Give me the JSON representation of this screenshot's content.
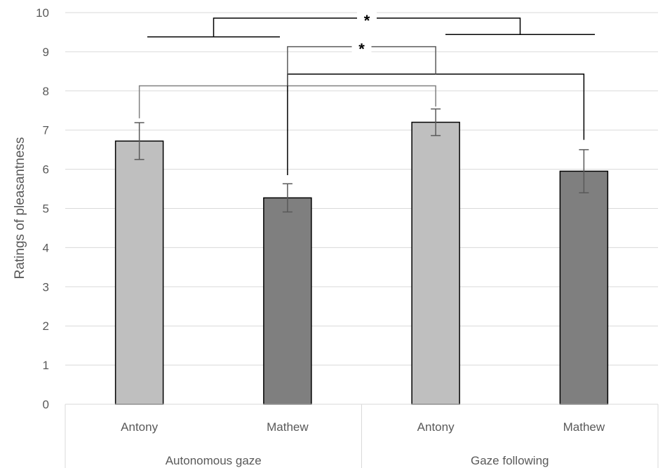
{
  "chart_data": {
    "type": "bar",
    "title": "",
    "xlabel": "",
    "ylabel": "Ratings of pleasantness",
    "ylim": [
      0,
      10
    ],
    "yticks": [
      "0",
      "1",
      "2",
      "3",
      "4",
      "5",
      "6",
      "7",
      "8",
      "9",
      "10"
    ],
    "grid": true,
    "groups": [
      {
        "label": "Autonomous gaze",
        "bars": [
          {
            "label": "Antony",
            "value": 6.72,
            "err": 0.47,
            "color": "#bfbfbf"
          },
          {
            "label": "Mathew",
            "value": 5.27,
            "err": 0.36,
            "color": "#7f7f7f"
          }
        ]
      },
      {
        "label": "Gaze following",
        "bars": [
          {
            "label": "Antony",
            "value": 7.2,
            "err": 0.34,
            "color": "#bfbfbf"
          },
          {
            "label": "Mathew",
            "value": 5.95,
            "err": 0.55,
            "color": "#7f7f7f"
          }
        ]
      }
    ],
    "annotations": [
      {
        "type": "significance",
        "label": "*",
        "compares": "Autonomous gaze vs Gaze following"
      },
      {
        "type": "significance",
        "label": "*",
        "compares": "Antony vs Mathew"
      }
    ]
  }
}
